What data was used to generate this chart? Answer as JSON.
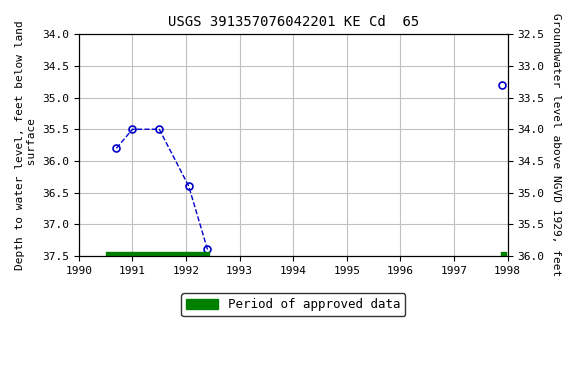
{
  "title": "USGS 391357076042201 KE Cd  65",
  "ylabel_left": "Depth to water level, feet below land\n surface",
  "ylabel_right": "Groundwater level above NGVD 1929, feet",
  "x_data_connected": [
    1990.7,
    1991.0,
    1991.5,
    1992.05,
    1992.4
  ],
  "y_data_connected": [
    35.8,
    35.5,
    35.5,
    36.4,
    37.4
  ],
  "x_data_isolated": [
    1997.9
  ],
  "y_data_isolated": [
    34.8
  ],
  "ylim_left": [
    34.0,
    37.5
  ],
  "ylim_right": [
    36.0,
    32.5
  ],
  "xlim": [
    1990,
    1998
  ],
  "line_color": "#0000cc",
  "marker_color": "#0000cc",
  "line_style": "--",
  "marker_style": "o",
  "marker_size": 5,
  "grid_color": "#c0c0c0",
  "approved_bar_x_start": 1990.5,
  "approved_bar_x_end": 1992.42,
  "approved_bar2_x_start": 1997.87,
  "approved_bar2_x_end": 1997.97,
  "approved_color": "#008000",
  "bg_color": "#ffffff",
  "legend_label": "Period of approved data",
  "xticks": [
    1990,
    1991,
    1992,
    1993,
    1994,
    1995,
    1996,
    1997,
    1998
  ],
  "yticks_left": [
    34.0,
    34.5,
    35.0,
    35.5,
    36.0,
    36.5,
    37.0,
    37.5
  ],
  "yticks_right": [
    36.0,
    35.5,
    35.0,
    34.5,
    34.0,
    33.5,
    33.0,
    32.5
  ]
}
